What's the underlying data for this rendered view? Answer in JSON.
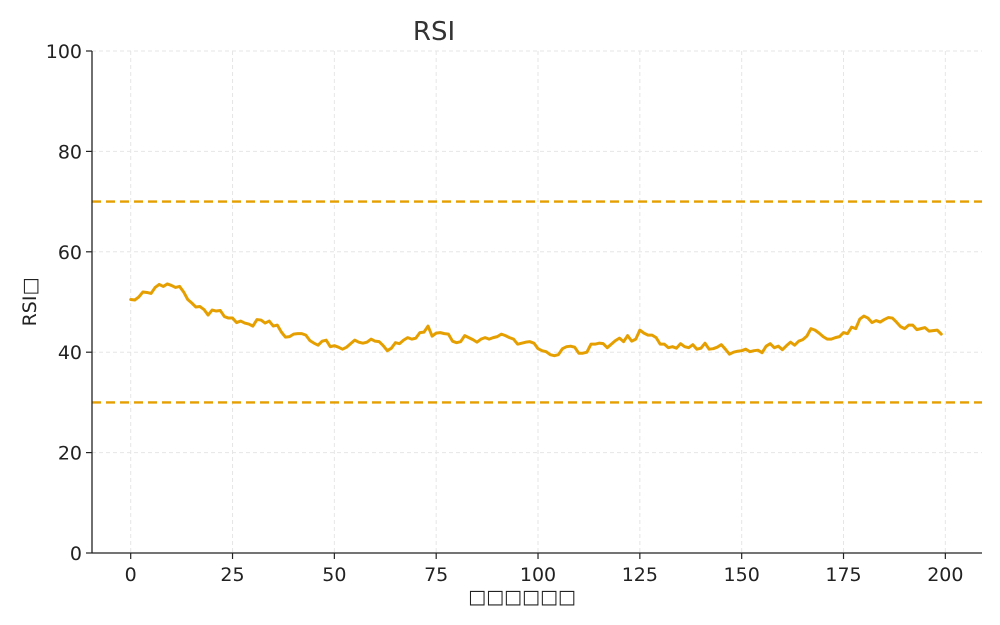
{
  "chart_data": {
    "type": "line",
    "title": "RSI",
    "xlabel": "□□□□□□",
    "ylabel": "RSI□",
    "xlim": [
      -9.5,
      209
    ],
    "ylim": [
      0,
      100
    ],
    "x_ticks": [
      0,
      25,
      50,
      75,
      100,
      125,
      150,
      175,
      200
    ],
    "y_ticks": [
      0,
      20,
      40,
      60,
      80,
      100
    ],
    "grid": true,
    "legend": "none",
    "colors": {
      "series": "#E69F00",
      "grid": "#e6e6e6",
      "axis": "#222222"
    },
    "reference_lines": [
      {
        "y": 70,
        "style": "dashed"
      },
      {
        "y": 30,
        "style": "dashed"
      }
    ],
    "series": [
      {
        "x_start": 0,
        "x_step": 1,
        "values": [
          50.5,
          50.4,
          51.0,
          52.0,
          51.9,
          51.7,
          52.9,
          53.5,
          53.1,
          53.6,
          53.3,
          52.9,
          53.1,
          52.0,
          50.5,
          49.8,
          49.0,
          49.1,
          48.5,
          47.4,
          48.4,
          48.2,
          48.3,
          47.1,
          46.8,
          46.8,
          45.9,
          46.2,
          45.8,
          45.6,
          45.2,
          46.5,
          46.4,
          45.8,
          46.2,
          45.2,
          45.4,
          44.0,
          43.0,
          43.1,
          43.6,
          43.7,
          43.7,
          43.4,
          42.3,
          41.8,
          41.4,
          42.2,
          42.4,
          41.1,
          41.3,
          41.0,
          40.6,
          41.0,
          41.7,
          42.4,
          42.0,
          41.8,
          42.0,
          42.6,
          42.2,
          42.1,
          41.3,
          40.3,
          40.8,
          41.9,
          41.7,
          42.4,
          42.9,
          42.6,
          42.8,
          43.9,
          44.0,
          45.2,
          43.2,
          43.8,
          43.9,
          43.7,
          43.6,
          42.2,
          41.9,
          42.1,
          43.3,
          42.9,
          42.5,
          42.0,
          42.6,
          42.9,
          42.6,
          42.9,
          43.1,
          43.6,
          43.3,
          42.9,
          42.6,
          41.6,
          41.8,
          42.0,
          42.1,
          41.8,
          40.7,
          40.3,
          40.1,
          39.5,
          39.3,
          39.5,
          40.7,
          41.1,
          41.2,
          41.0,
          39.8,
          39.8,
          40.0,
          41.6,
          41.6,
          41.8,
          41.7,
          40.9,
          41.6,
          42.3,
          42.8,
          42.1,
          43.3,
          42.2,
          42.6,
          44.4,
          43.8,
          43.4,
          43.4,
          42.9,
          41.6,
          41.6,
          40.9,
          41.1,
          40.8,
          41.7,
          41.1,
          40.9,
          41.5,
          40.6,
          40.8,
          41.8,
          40.6,
          40.7,
          41.0,
          41.5,
          40.6,
          39.6,
          40.0,
          40.2,
          40.3,
          40.6,
          40.1,
          40.3,
          40.4,
          39.9,
          41.2,
          41.7,
          40.9,
          41.2,
          40.5,
          41.3,
          42.0,
          41.4,
          42.2,
          42.5,
          43.2,
          44.7,
          44.4,
          43.8,
          43.1,
          42.6,
          42.6,
          42.9,
          43.1,
          43.9,
          43.7,
          45.0,
          44.7,
          46.6,
          47.2,
          46.8,
          45.9,
          46.3,
          46.0,
          46.5,
          46.9,
          46.8,
          46.0,
          45.1,
          44.7,
          45.4,
          45.4,
          44.5,
          44.7,
          44.9,
          44.2,
          44.3,
          44.4,
          43.6
        ]
      }
    ]
  }
}
